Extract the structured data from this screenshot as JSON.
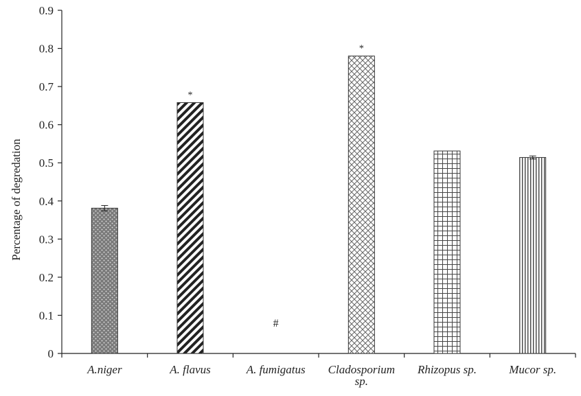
{
  "chart_data": {
    "type": "bar",
    "title": "",
    "xlabel": "",
    "ylabel": "Percentage of degredation",
    "ylim": [
      0,
      0.9
    ],
    "yticks": [
      "0",
      "0.1",
      "0.2",
      "0.3",
      "0.4",
      "0.5",
      "0.6",
      "0.7",
      "0.8",
      "0.9"
    ],
    "categories": [
      {
        "lines": [
          "A.niger"
        ]
      },
      {
        "lines": [
          "A. flavus"
        ]
      },
      {
        "lines": [
          "A. fumigatus"
        ]
      },
      {
        "lines": [
          "Cladosporium",
          "sp."
        ]
      },
      {
        "lines": [
          "Rhizopus sp."
        ]
      },
      {
        "lines": [
          "Mucor sp."
        ]
      }
    ],
    "values": [
      0.381,
      0.658,
      0,
      0.78,
      0.531,
      0.514
    ],
    "error": [
      0.007,
      0,
      0,
      0,
      0,
      0.004
    ],
    "annotations": [
      "",
      "*",
      "#",
      "*",
      "",
      ""
    ],
    "patterns": [
      "dots",
      "diagonal",
      "none",
      "crosshatch",
      "grid",
      "vertical"
    ],
    "grid": false,
    "legend": "none"
  }
}
